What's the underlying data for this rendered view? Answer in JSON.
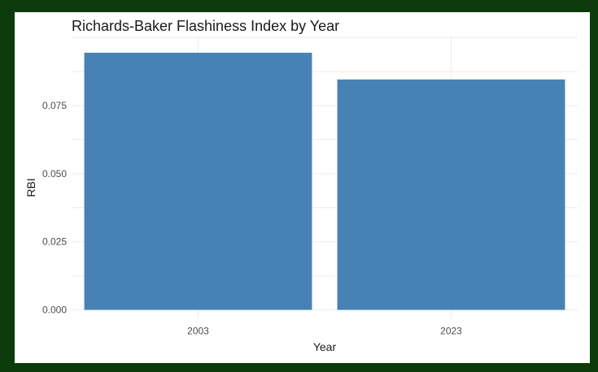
{
  "colors": {
    "page_border": "#0b3a0b",
    "panel": "#ffffff",
    "bar_fill": "#4682b4",
    "gridline": "#ebebeb"
  },
  "chart_data": {
    "type": "bar",
    "title": "Richards-Baker Flashiness Index by Year",
    "xlabel": "Year",
    "ylabel": "RBI",
    "categories": [
      "2003",
      "2023"
    ],
    "values": [
      0.0944,
      0.0846
    ],
    "ylim": [
      0,
      0.1
    ],
    "yticks": [
      0.0,
      0.025,
      0.05,
      0.075
    ],
    "ytick_labels": [
      "0.000",
      "0.025",
      "0.050",
      "0.075"
    ],
    "grid": true,
    "legend": "none"
  }
}
